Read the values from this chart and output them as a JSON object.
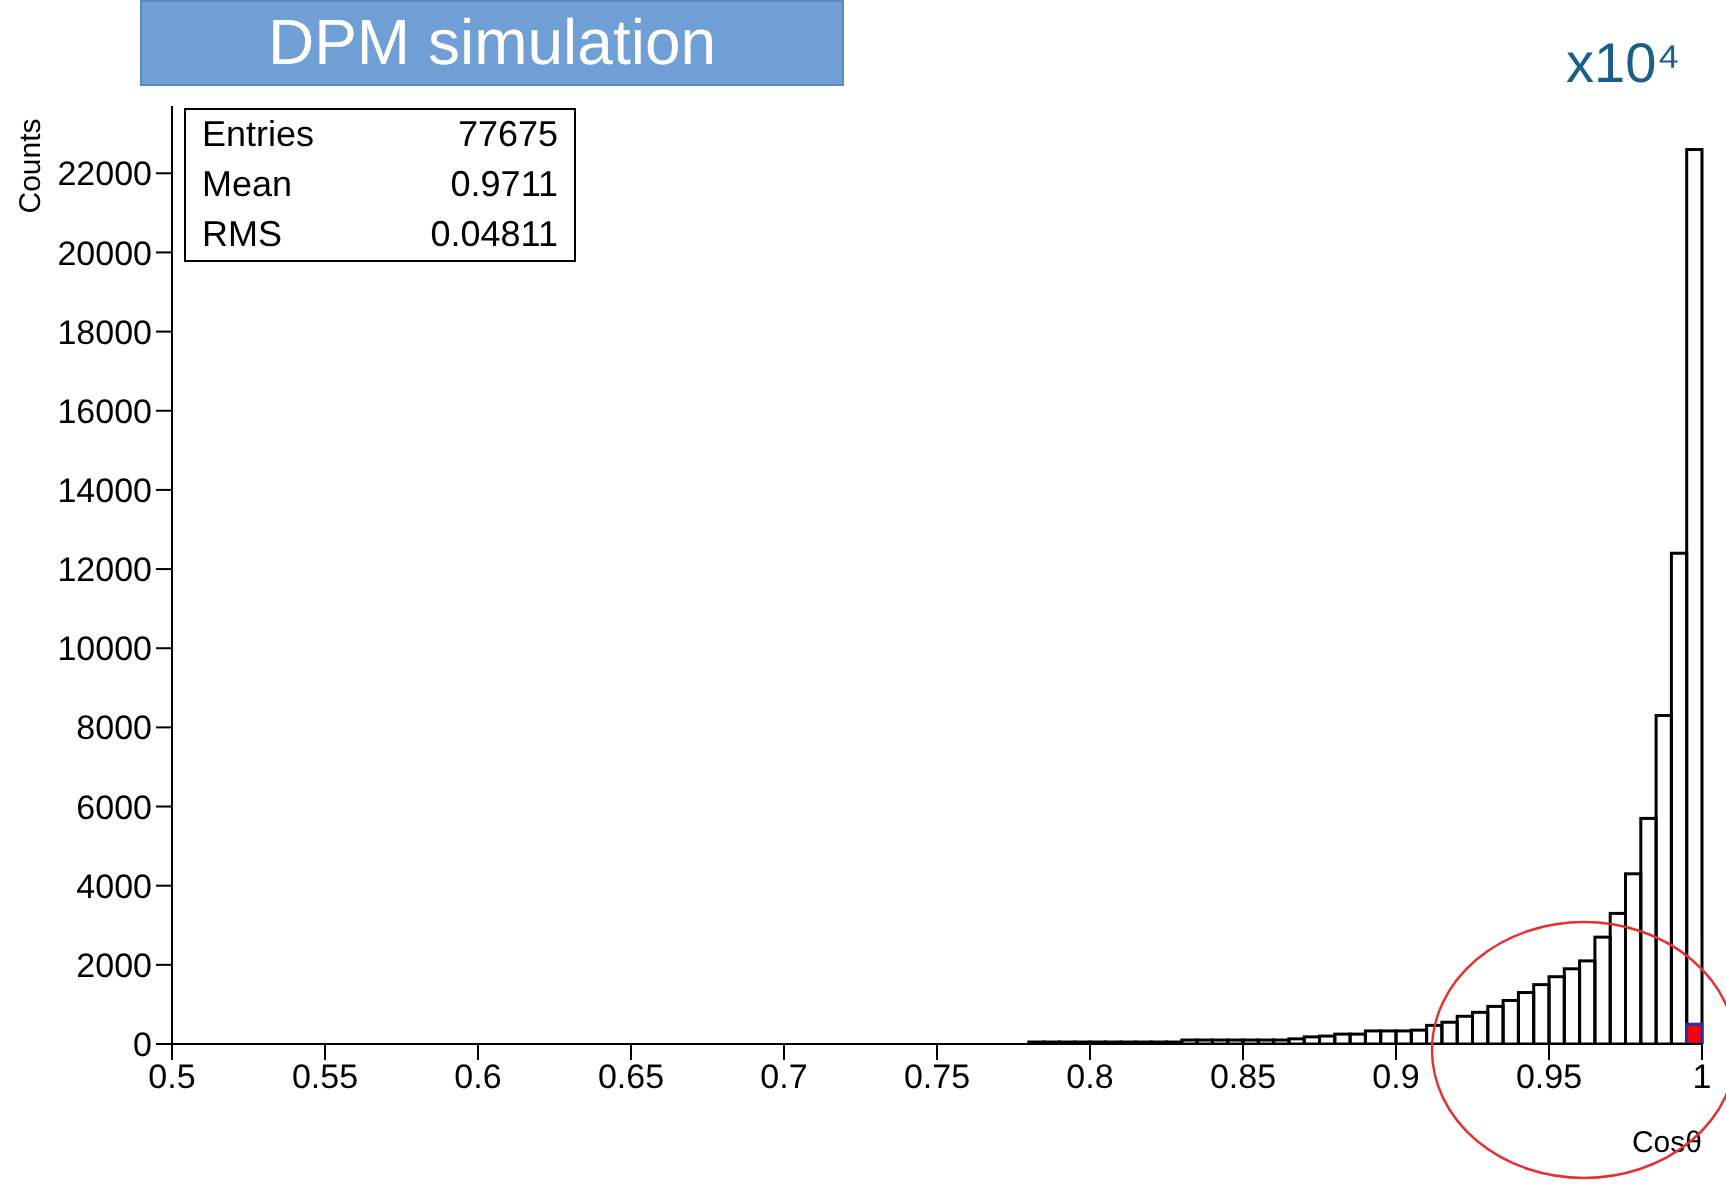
{
  "chart_data": {
    "type": "histogram",
    "title": "DPM simulation",
    "xlabel": "Cosθ",
    "ylabel": "Counts",
    "annotations": [
      "Entries",
      "77675",
      "Mean",
      "0.9711",
      "RMS",
      "0.04811",
      "x10⁴"
    ],
    "bins": [
      0.5,
      0.505,
      0.51,
      0.515,
      0.52,
      0.525,
      0.53,
      0.535,
      0.54,
      0.545,
      0.55,
      0.555,
      0.56,
      0.565,
      0.57,
      0.575,
      0.58,
      0.585,
      0.59,
      0.595,
      0.6,
      0.605,
      0.61,
      0.615,
      0.62,
      0.625,
      0.63,
      0.635,
      0.64,
      0.645,
      0.65,
      0.655,
      0.66,
      0.665,
      0.67,
      0.675,
      0.68,
      0.685,
      0.69,
      0.695,
      0.7,
      0.705,
      0.71,
      0.715,
      0.72,
      0.725,
      0.73,
      0.735,
      0.74,
      0.745,
      0.75,
      0.755,
      0.76,
      0.765,
      0.77,
      0.775,
      0.78,
      0.785,
      0.79,
      0.795,
      0.8,
      0.805,
      0.81,
      0.815,
      0.82,
      0.825,
      0.83,
      0.835,
      0.84,
      0.845,
      0.85,
      0.855,
      0.86,
      0.865,
      0.87,
      0.875,
      0.88,
      0.885,
      0.89,
      0.895,
      0.9,
      0.905,
      0.91,
      0.915,
      0.92,
      0.925,
      0.93,
      0.935,
      0.94,
      0.945,
      0.95,
      0.955,
      0.96,
      0.965,
      0.97,
      0.975,
      0.98,
      0.985,
      0.99,
      0.995,
      1
    ],
    "series": [
      {
        "color": "#000000",
        "values": [
          0,
          0,
          0,
          0,
          0,
          0,
          0,
          0,
          0,
          0,
          0,
          0,
          0,
          0,
          0,
          0,
          0,
          0,
          0,
          0,
          0,
          0,
          0,
          0,
          0,
          0,
          0,
          0,
          0,
          0,
          0,
          0,
          0,
          0,
          0,
          0,
          0,
          0,
          0,
          0,
          0,
          0,
          0,
          0,
          0,
          0,
          0,
          0,
          0,
          0,
          0,
          0,
          0,
          0,
          0,
          0,
          50,
          50,
          50,
          50,
          50,
          50,
          50,
          50,
          50,
          50,
          100,
          100,
          100,
          100,
          100,
          100,
          100,
          130,
          180,
          200,
          250,
          250,
          330,
          330,
          330,
          350,
          470,
          550,
          700,
          800,
          950,
          1100,
          1300,
          1500,
          1700,
          1900,
          2100,
          2700,
          3300,
          4300,
          5700,
          8300,
          12400,
          22600
        ]
      },
      {
        "color": "#ff0000",
        "values": [
          0,
          0,
          0,
          0,
          0,
          0,
          0,
          0,
          0,
          0,
          0,
          0,
          0,
          0,
          0,
          0,
          0,
          0,
          0,
          0,
          0,
          0,
          0,
          0,
          0,
          0,
          0,
          0,
          0,
          0,
          0,
          0,
          0,
          0,
          0,
          0,
          0,
          0,
          0,
          0,
          0,
          0,
          0,
          0,
          0,
          0,
          0,
          0,
          0,
          0,
          0,
          0,
          0,
          0,
          0,
          0,
          0,
          0,
          0,
          0,
          0,
          0,
          0,
          0,
          0,
          0,
          0,
          0,
          0,
          0,
          0,
          0,
          0,
          0,
          0,
          0,
          0,
          0,
          0,
          0,
          0,
          0,
          0,
          0,
          0,
          0,
          0,
          0,
          0,
          0,
          0,
          0,
          0,
          0,
          0,
          0,
          0,
          0,
          0,
          500
        ]
      }
    ],
    "xlim": [
      0.5,
      1
    ],
    "xticks": [
      0.5,
      0.55,
      0.6,
      0.65,
      0.7,
      0.75,
      0.8,
      0.85,
      0.9,
      0.95,
      1
    ],
    "ylim": [
      0,
      23700
    ],
    "yticks": [
      0,
      2000,
      4000,
      6000,
      8000,
      10000,
      12000,
      14000,
      16000,
      18000,
      20000,
      22000
    ]
  }
}
